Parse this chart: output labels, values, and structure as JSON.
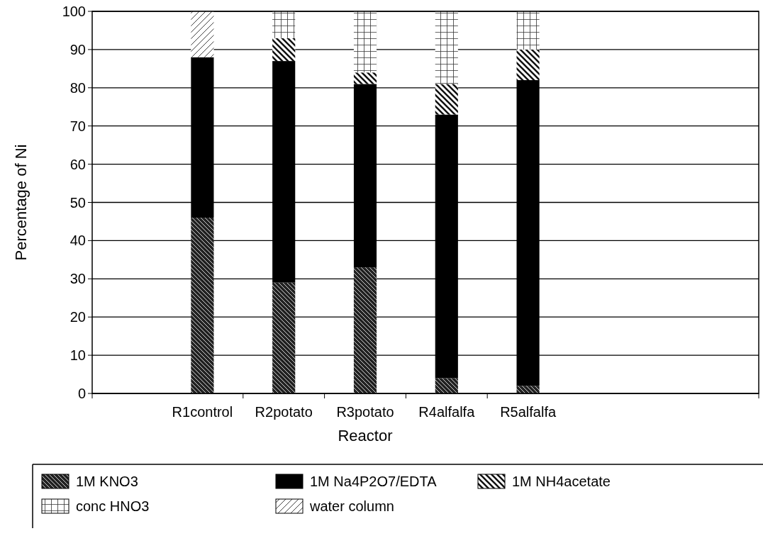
{
  "chart_data": {
    "type": "bar",
    "stacked": true,
    "xlabel": "Reactor",
    "ylabel": "Percentage of Ni",
    "categories": [
      "R1control",
      "R2potato",
      "R3potato",
      "R4alfalfa",
      "R5alfalfa"
    ],
    "series": [
      {
        "name": "1M KNO3",
        "color": "#222222",
        "values": [
          46,
          29,
          33,
          4,
          2
        ]
      },
      {
        "name": "1M Na4P2O7/EDTA",
        "color": "#000000",
        "values": [
          42,
          58,
          48,
          69,
          80
        ]
      },
      {
        "name": "1M NH4acetate",
        "color": "#111111",
        "values": [
          0,
          6,
          3,
          8,
          8
        ]
      },
      {
        "name": "conc HNO3",
        "color": "#333333",
        "values": [
          0,
          7,
          16,
          19,
          10
        ]
      },
      {
        "name": "water column",
        "color": "#444444",
        "values": [
          12,
          0,
          0,
          0,
          0
        ]
      }
    ],
    "ylim": [
      0,
      100
    ],
    "yticks": [
      0,
      10,
      20,
      30,
      40,
      50,
      60,
      70,
      80,
      90,
      100
    ],
    "grid": "y",
    "legend": "bottom"
  }
}
